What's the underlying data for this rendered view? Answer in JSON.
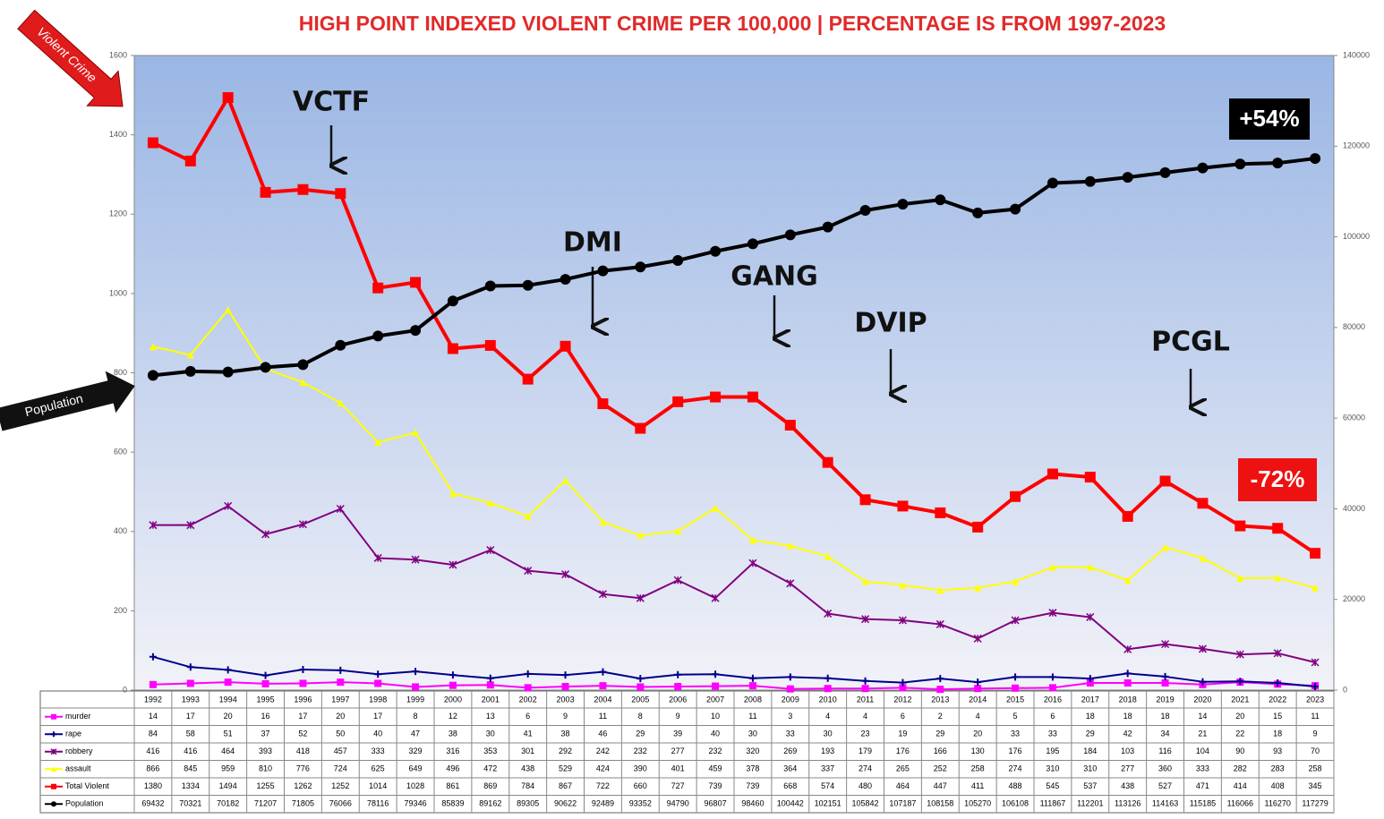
{
  "chart_data": {
    "type": "line",
    "title": "HIGH POINT INDEXED VIOLENT CRIME PER 100,000 | PERCENTAGE IS FROM 1997-2023",
    "categories": [
      "1992",
      "1993",
      "1994",
      "1995",
      "1996",
      "1997",
      "1998",
      "1999",
      "2000",
      "2001",
      "2002",
      "2003",
      "2004",
      "2005",
      "2006",
      "2007",
      "2008",
      "2009",
      "2010",
      "2011",
      "2012",
      "2013",
      "2014",
      "2015",
      "2016",
      "2017",
      "2018",
      "2019",
      "2020",
      "2021",
      "2022",
      "2023"
    ],
    "ylim": [
      0,
      1600
    ],
    "yticks": [
      0,
      200,
      400,
      600,
      800,
      1000,
      1200,
      1400,
      1600
    ],
    "y2lim": [
      0,
      140000
    ],
    "y2ticks": [
      0,
      20000,
      40000,
      60000,
      80000,
      100000,
      120000,
      140000
    ],
    "series": [
      {
        "name": "murder",
        "color": "#ff00ff",
        "marker": "square",
        "values": [
          14,
          17,
          20,
          16,
          17,
          20,
          17,
          8,
          12,
          13,
          6,
          9,
          11,
          8,
          9,
          10,
          11,
          3,
          4,
          4,
          6,
          2,
          4,
          5,
          6,
          18,
          18,
          18,
          14,
          20,
          15,
          11
        ]
      },
      {
        "name": "rape",
        "color": "#00008b",
        "marker": "plus",
        "values": [
          84,
          58,
          51,
          37,
          52,
          50,
          40,
          47,
          38,
          30,
          41,
          38,
          46,
          29,
          39,
          40,
          30,
          33,
          30,
          23,
          19,
          29,
          20,
          33,
          33,
          29,
          42,
          34,
          21,
          22,
          18,
          9
        ]
      },
      {
        "name": "robbery",
        "color": "#800080",
        "marker": "star",
        "values": [
          416,
          416,
          464,
          393,
          418,
          457,
          333,
          329,
          316,
          353,
          301,
          292,
          242,
          232,
          277,
          232,
          320,
          269,
          193,
          179,
          176,
          166,
          130,
          176,
          195,
          184,
          103,
          116,
          104,
          90,
          93,
          70
        ]
      },
      {
        "name": "assault",
        "color": "#ffff00",
        "marker": "triangle",
        "values": [
          866,
          845,
          959,
          810,
          776,
          724,
          625,
          649,
          496,
          472,
          438,
          529,
          424,
          390,
          401,
          459,
          378,
          364,
          337,
          274,
          265,
          252,
          258,
          274,
          310,
          310,
          277,
          360,
          333,
          282,
          283,
          258
        ]
      },
      {
        "name": "Total Violent",
        "color": "#ff0000",
        "marker": "square",
        "values": [
          1380,
          1334,
          1494,
          1255,
          1262,
          1252,
          1014,
          1028,
          861,
          869,
          784,
          867,
          722,
          660,
          727,
          739,
          739,
          668,
          574,
          480,
          464,
          447,
          411,
          488,
          545,
          537,
          438,
          527,
          471,
          414,
          408,
          345
        ]
      },
      {
        "name": "Population",
        "color": "#000000",
        "marker": "circle",
        "axis": "y2",
        "values": [
          69432,
          70321,
          70182,
          71207,
          71805,
          76066,
          78116,
          79346,
          85839,
          89162,
          89305,
          90622,
          92489,
          93352,
          94790,
          96807,
          98460,
          100442,
          102151,
          105842,
          107187,
          108158,
          105270,
          106108,
          111867,
          112201,
          113126,
          114163,
          115185,
          116066,
          116270,
          117279
        ]
      }
    ],
    "annotations": [
      "VCTF",
      "DMI",
      "GANG",
      "DVIP",
      "PCGL",
      "+54%",
      "-72%",
      "Violent Crime",
      "Population"
    ]
  }
}
